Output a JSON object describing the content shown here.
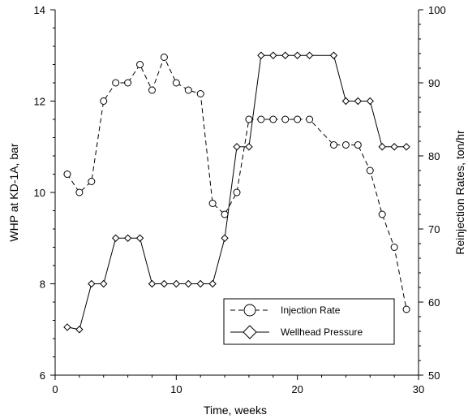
{
  "chart_data": {
    "type": "line",
    "xlabel": "Time, weeks",
    "ylabel_left": "WHP at KD-1A, bar",
    "ylabel_right": "Reinjection Rates, ton/hr",
    "xlim": [
      0,
      30
    ],
    "ylim_left": [
      6,
      14
    ],
    "ylim_right": [
      50,
      100
    ],
    "x_ticks": [
      0,
      10,
      20,
      30
    ],
    "y_left_ticks": [
      6,
      8,
      10,
      12,
      14
    ],
    "y_right_ticks": [
      50,
      60,
      70,
      80,
      90,
      100
    ],
    "grid": false,
    "legend_position": "lower-right",
    "series": [
      {
        "name": "Injection Rate",
        "axis": "right",
        "line_style": "dashed",
        "marker": "circle",
        "x": [
          1,
          2,
          3,
          4,
          5,
          6,
          7,
          8,
          9,
          10,
          11,
          12,
          13,
          14,
          15,
          16,
          17,
          18,
          19,
          20,
          21,
          23,
          24,
          25,
          26,
          27,
          28,
          29
        ],
        "y": [
          77.5,
          75,
          76.5,
          87.5,
          90,
          90,
          92.5,
          89,
          93.5,
          90,
          89,
          88.5,
          73.5,
          72,
          75,
          85,
          85,
          85,
          85,
          85,
          85,
          81.5,
          81.5,
          81.5,
          78,
          72,
          67.5,
          59
        ]
      },
      {
        "name": "Wellhead Pressure",
        "axis": "left",
        "line_style": "solid",
        "marker": "diamond",
        "x": [
          1,
          2,
          3,
          4,
          5,
          6,
          7,
          8,
          9,
          10,
          11,
          12,
          13,
          14,
          15,
          16,
          17,
          18,
          19,
          20,
          21,
          23,
          24,
          25,
          26,
          27,
          28,
          29
        ],
        "y": [
          7.05,
          7.0,
          8.0,
          8.0,
          9.0,
          9.0,
          9.0,
          8.0,
          8.0,
          8.0,
          8.0,
          8.0,
          8.0,
          9.0,
          11.0,
          11.0,
          13.0,
          13.0,
          13.0,
          13.0,
          13.0,
          13.0,
          12.0,
          12.0,
          12.0,
          11.0,
          11.0,
          11.0
        ]
      }
    ]
  }
}
